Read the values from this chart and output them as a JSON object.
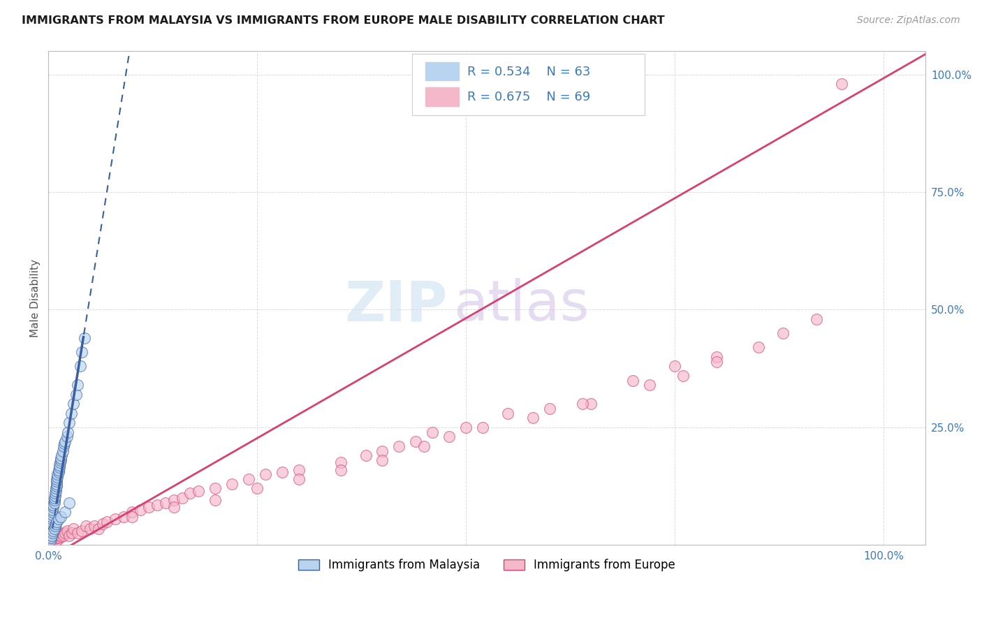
{
  "title": "IMMIGRANTS FROM MALAYSIA VS IMMIGRANTS FROM EUROPE MALE DISABILITY CORRELATION CHART",
  "source": "Source: ZipAtlas.com",
  "series1_label": "Immigrants from Malaysia",
  "series2_label": "Immigrants from Europe",
  "series1_R": 0.534,
  "series1_N": 63,
  "series2_R": 0.675,
  "series2_N": 69,
  "series1_color": "#b8d4f0",
  "series2_color": "#f5b8cb",
  "series1_line_color": "#3a5fa0",
  "series2_line_color": "#d94070",
  "background_color": "#ffffff",
  "grid_color": "#cccccc",
  "malaysia_x": [
    0.001,
    0.002,
    0.002,
    0.003,
    0.003,
    0.003,
    0.004,
    0.004,
    0.004,
    0.004,
    0.005,
    0.005,
    0.005,
    0.006,
    0.006,
    0.007,
    0.007,
    0.007,
    0.008,
    0.008,
    0.009,
    0.009,
    0.01,
    0.01,
    0.01,
    0.01,
    0.011,
    0.011,
    0.012,
    0.012,
    0.013,
    0.013,
    0.014,
    0.015,
    0.015,
    0.016,
    0.017,
    0.018,
    0.019,
    0.02,
    0.022,
    0.023,
    0.025,
    0.027,
    0.03,
    0.033,
    0.035,
    0.038,
    0.04,
    0.043,
    0.002,
    0.003,
    0.004,
    0.005,
    0.006,
    0.007,
    0.008,
    0.009,
    0.01,
    0.012,
    0.015,
    0.02,
    0.025
  ],
  "malaysia_y": [
    0.015,
    0.02,
    0.025,
    0.03,
    0.035,
    0.04,
    0.045,
    0.05,
    0.055,
    0.06,
    0.065,
    0.07,
    0.075,
    0.08,
    0.085,
    0.09,
    0.095,
    0.1,
    0.105,
    0.11,
    0.115,
    0.12,
    0.125,
    0.13,
    0.135,
    0.14,
    0.145,
    0.15,
    0.155,
    0.16,
    0.165,
    0.17,
    0.175,
    0.18,
    0.185,
    0.19,
    0.2,
    0.21,
    0.215,
    0.22,
    0.23,
    0.24,
    0.26,
    0.28,
    0.3,
    0.32,
    0.34,
    0.38,
    0.41,
    0.44,
    0.01,
    0.015,
    0.02,
    0.025,
    0.03,
    0.035,
    0.04,
    0.045,
    0.05,
    0.055,
    0.06,
    0.07,
    0.09
  ],
  "europe_x": [
    0.001,
    0.002,
    0.002,
    0.003,
    0.003,
    0.004,
    0.004,
    0.005,
    0.005,
    0.006,
    0.007,
    0.007,
    0.008,
    0.008,
    0.009,
    0.01,
    0.01,
    0.011,
    0.012,
    0.013,
    0.014,
    0.015,
    0.016,
    0.017,
    0.018,
    0.02,
    0.022,
    0.025,
    0.028,
    0.03,
    0.035,
    0.04,
    0.045,
    0.05,
    0.055,
    0.06,
    0.065,
    0.07,
    0.08,
    0.09,
    0.1,
    0.11,
    0.12,
    0.13,
    0.14,
    0.15,
    0.16,
    0.17,
    0.18,
    0.2,
    0.22,
    0.24,
    0.26,
    0.28,
    0.3,
    0.35,
    0.38,
    0.4,
    0.42,
    0.44,
    0.46,
    0.5,
    0.55,
    0.6,
    0.65,
    0.7,
    0.75,
    0.8,
    0.95
  ],
  "europe_y": [
    0.005,
    0.008,
    0.01,
    0.012,
    0.015,
    0.018,
    0.02,
    0.01,
    0.025,
    0.015,
    0.012,
    0.018,
    0.02,
    0.022,
    0.025,
    0.01,
    0.015,
    0.02,
    0.025,
    0.015,
    0.02,
    0.025,
    0.018,
    0.022,
    0.02,
    0.025,
    0.03,
    0.02,
    0.025,
    0.035,
    0.025,
    0.03,
    0.04,
    0.035,
    0.04,
    0.035,
    0.045,
    0.05,
    0.055,
    0.06,
    0.07,
    0.075,
    0.08,
    0.085,
    0.09,
    0.095,
    0.1,
    0.11,
    0.115,
    0.12,
    0.13,
    0.14,
    0.15,
    0.155,
    0.16,
    0.175,
    0.19,
    0.2,
    0.21,
    0.22,
    0.24,
    0.25,
    0.28,
    0.29,
    0.3,
    0.35,
    0.38,
    0.4,
    0.98
  ],
  "europe_extra_x": [
    0.1,
    0.15,
    0.2,
    0.25,
    0.3,
    0.35,
    0.4,
    0.45,
    0.48,
    0.52,
    0.58,
    0.64,
    0.72,
    0.76,
    0.8,
    0.85,
    0.88,
    0.92
  ],
  "europe_extra_y": [
    0.06,
    0.08,
    0.095,
    0.12,
    0.14,
    0.16,
    0.18,
    0.21,
    0.23,
    0.25,
    0.27,
    0.3,
    0.34,
    0.36,
    0.39,
    0.42,
    0.45,
    0.48
  ],
  "ylim": [
    0,
    1.05
  ],
  "xlim": [
    0,
    1.05
  ],
  "yticks": [
    0,
    0.25,
    0.5,
    0.75,
    1.0
  ],
  "ytick_labels": [
    "",
    "25.0%",
    "50.0%",
    "75.0%",
    "100.0%"
  ],
  "xticks": [
    0,
    0.25,
    0.5,
    0.75,
    1.0
  ],
  "xtick_labels": [
    "0.0%",
    "",
    "",
    "",
    "100.0%"
  ],
  "watermark_zip_color": "#c8dff0",
  "watermark_atlas_color": "#d0c0e8",
  "title_fontsize": 11.5,
  "source_fontsize": 10,
  "tick_fontsize": 11,
  "legend_fontsize": 13
}
